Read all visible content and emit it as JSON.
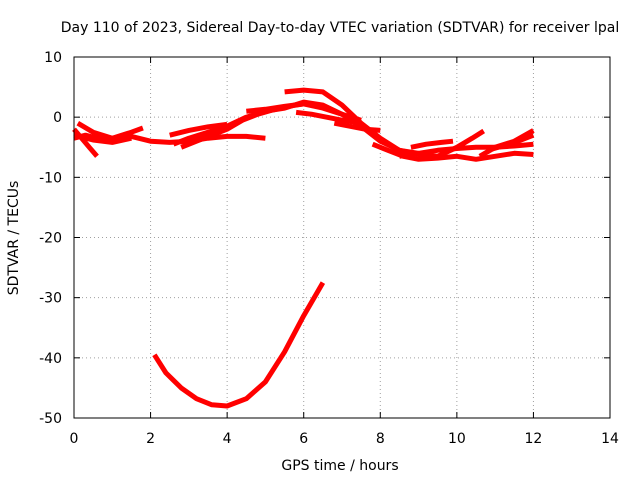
{
  "chart_data": {
    "type": "line",
    "title": "Day 110 of 2023, Sidereal Day-to-day VTEC variation (SDTVAR) for receiver lpal",
    "xlabel": "GPS time / hours",
    "ylabel": "SDTVAR / TECUs",
    "xlim": [
      0,
      14
    ],
    "ylim": [
      -50,
      10
    ],
    "xticks": [
      0,
      2,
      4,
      6,
      8,
      10,
      12,
      14
    ],
    "yticks": [
      -50,
      -40,
      -30,
      -20,
      -10,
      0,
      10
    ],
    "xtick_labels": [
      "0",
      "2",
      "4",
      "6",
      "8",
      "10",
      "12",
      "14"
    ],
    "ytick_labels": [
      "-50",
      "-40",
      "-30",
      "-20",
      "-10",
      "0",
      "10"
    ],
    "grid": true,
    "legend": "none",
    "series_color": "#ff0000",
    "series": [
      {
        "name": "track-1",
        "x": [
          0.0,
          0.3,
          0.6,
          1.0,
          1.5,
          2.0,
          2.5,
          3.0,
          3.5,
          4.0,
          4.5,
          5.0
        ],
        "y": [
          -3.5,
          -3.0,
          -3.5,
          -3.5,
          -3.2,
          -4.0,
          -4.2,
          -4.0,
          -3.5,
          -3.2,
          -3.2,
          -3.5
        ]
      },
      {
        "name": "track-2",
        "x": [
          0.0,
          0.2,
          0.4,
          0.6
        ],
        "y": [
          -2.0,
          -3.5,
          -5.0,
          -6.5
        ]
      },
      {
        "name": "track-3",
        "x": [
          0.1,
          0.5,
          1.0,
          1.5,
          1.8
        ],
        "y": [
          -1.0,
          -2.5,
          -3.5,
          -2.5,
          -1.8
        ]
      },
      {
        "name": "track-4",
        "x": [
          0.0,
          0.5,
          1.0,
          1.5
        ],
        "y": [
          -3.0,
          -3.8,
          -4.2,
          -3.5
        ]
      },
      {
        "name": "track-5",
        "x": [
          2.8,
          3.2,
          3.6,
          4.0,
          4.4,
          4.8,
          5.2,
          5.6,
          6.0,
          6.4
        ],
        "y": [
          -5.0,
          -4.0,
          -3.0,
          -2.0,
          -0.5,
          0.5,
          1.2,
          1.8,
          2.2,
          2.0
        ]
      },
      {
        "name": "track-6",
        "x": [
          2.6,
          3.0,
          3.5,
          4.0,
          4.5,
          5.0,
          5.5,
          6.0,
          6.5,
          7.0,
          7.5,
          8.0,
          8.5,
          9.0
        ],
        "y": [
          -4.5,
          -3.5,
          -2.5,
          -1.5,
          0.0,
          1.0,
          1.5,
          2.5,
          2.0,
          0.5,
          -1.5,
          -4.0,
          -5.5,
          -6.0
        ]
      },
      {
        "name": "track-7",
        "x": [
          2.5,
          3.0,
          3.5,
          4.0
        ],
        "y": [
          -3.0,
          -2.2,
          -1.6,
          -1.2
        ]
      },
      {
        "name": "track-8",
        "x": [
          4.5,
          5.0,
          5.5,
          6.0,
          6.5,
          7.0,
          7.5
        ],
        "y": [
          1.0,
          1.3,
          1.8,
          2.2,
          1.5,
          0.5,
          -0.5
        ]
      },
      {
        "name": "track-9",
        "x": [
          5.5,
          6.0,
          6.5,
          7.0,
          7.5,
          8.0,
          8.5,
          9.0,
          9.5
        ],
        "y": [
          4.2,
          4.5,
          4.2,
          2.0,
          -1.0,
          -3.5,
          -5.5,
          -6.2,
          -6.5
        ]
      },
      {
        "name": "track-10",
        "x": [
          5.8,
          6.2,
          6.6,
          7.0,
          7.5
        ],
        "y": [
          0.8,
          0.5,
          0.0,
          -0.5,
          -1.0
        ]
      },
      {
        "name": "track-11",
        "x": [
          6.8,
          7.2,
          7.6,
          8.0
        ],
        "y": [
          -1.0,
          -1.5,
          -2.0,
          -2.2
        ]
      },
      {
        "name": "track-12",
        "x": [
          7.8,
          8.2,
          8.6,
          9.0,
          9.5,
          10.0,
          10.5,
          11.0,
          11.5,
          12.0
        ],
        "y": [
          -4.5,
          -5.5,
          -6.5,
          -7.0,
          -6.8,
          -6.5,
          -7.0,
          -6.5,
          -6.0,
          -6.2
        ]
      },
      {
        "name": "track-13",
        "x": [
          8.5,
          9.0,
          9.5,
          10.0,
          10.5,
          11.0,
          11.5,
          12.0
        ],
        "y": [
          -6.5,
          -6.0,
          -5.5,
          -5.2,
          -5.0,
          -5.0,
          -4.8,
          -4.5
        ]
      },
      {
        "name": "track-14",
        "x": [
          8.8,
          9.2,
          9.6,
          9.9
        ],
        "y": [
          -5.0,
          -4.5,
          -4.2,
          -4.0
        ]
      },
      {
        "name": "track-15",
        "x": [
          9.5,
          10.0,
          10.4,
          10.7
        ],
        "y": [
          -6.5,
          -5.0,
          -3.5,
          -2.3
        ]
      },
      {
        "name": "track-16",
        "x": [
          10.6,
          11.0,
          11.5,
          12.0
        ],
        "y": [
          -6.5,
          -5.0,
          -4.0,
          -2.2
        ]
      },
      {
        "name": "track-17",
        "x": [
          10.8,
          11.2,
          11.6,
          12.0
        ],
        "y": [
          -5.5,
          -4.8,
          -4.0,
          -3.0
        ]
      },
      {
        "name": "track-18",
        "x": [
          2.1,
          2.4,
          2.8,
          3.2,
          3.6,
          4.0,
          4.5,
          5.0,
          5.5,
          6.0,
          6.5
        ],
        "y": [
          -39.5,
          -42.5,
          -45.0,
          -46.8,
          -47.8,
          -48.0,
          -46.8,
          -44.0,
          -39.0,
          -33.0,
          -27.5
        ]
      }
    ]
  }
}
